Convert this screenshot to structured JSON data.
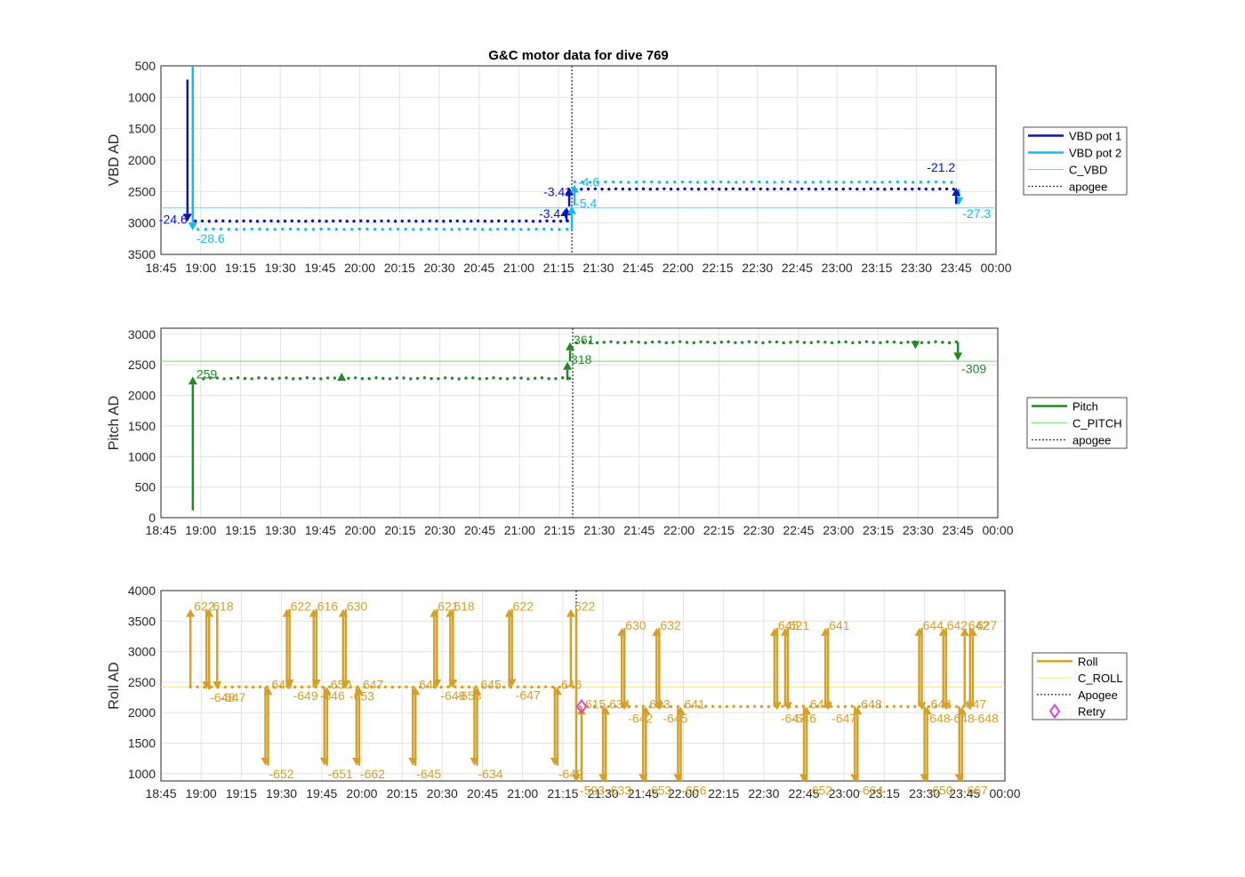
{
  "colors": {
    "vbd1": "#0c14b4",
    "vbd2": "#1ab8e8",
    "cvbd": "#5fd9e6",
    "pitch": "#24882a",
    "cpitch": "#66e066",
    "roll": "#d3a12b",
    "croll": "#f2ea6b",
    "retry": "#e040e0",
    "apogee": "#333333"
  },
  "chart_data": [
    {
      "type": "line",
      "title": "G&C motor data for dive 769",
      "ylabel": "VBD AD",
      "xlim": [
        "18:45",
        "00:00"
      ],
      "x_ticks": [
        "18:45",
        "19:00",
        "19:15",
        "19:30",
        "19:45",
        "20:00",
        "20:15",
        "20:30",
        "20:45",
        "21:00",
        "21:15",
        "21:30",
        "21:45",
        "22:00",
        "22:15",
        "22:30",
        "22:45",
        "23:00",
        "23:15",
        "23:30",
        "23:45",
        "00:00"
      ],
      "ylim": [
        500,
        3500
      ],
      "y_reversed": true,
      "y_ticks": [
        "500",
        "1000",
        "1500",
        "2000",
        "2500",
        "3000",
        "3500"
      ],
      "grid": true,
      "legend": [
        "VBD pot 1",
        "VBD pot 2",
        "C_VBD",
        "apogee"
      ],
      "legend_placement": "right",
      "apogee": "21:20",
      "reference_line": {
        "name": "C_VBD",
        "y": 2760
      },
      "series": [
        {
          "name": "VBD pot 1",
          "y_start": 2970,
          "y_end": 2460,
          "t_switch": "21:20"
        },
        {
          "name": "VBD pot 2",
          "y_start": 3100,
          "y_end": 2350,
          "t_switch": "21:20"
        }
      ],
      "moves": [
        {
          "x": "18:55",
          "from": 720,
          "to": 2980,
          "series": "VBD pot 1",
          "label": "-24.6"
        },
        {
          "x": "18:57",
          "from": 500,
          "to": 3120,
          "series": "VBD pot 2",
          "label": "-28.6"
        },
        {
          "x": "21:18",
          "from": 2980,
          "to": 2750,
          "series": "VBD pot 1",
          "label": "-3.44"
        },
        {
          "x": "21:19",
          "from": 2740,
          "to": 2430,
          "series": "VBD pot 1",
          "label": "-3.41"
        },
        {
          "x": "21:20",
          "from": 3100,
          "to": 2730,
          "series": "VBD pot 2",
          "label": "-5.4"
        },
        {
          "x": "21:21",
          "from": 2720,
          "to": 2390,
          "series": "VBD pot 2",
          "label": "-4.6"
        },
        {
          "x": "23:46",
          "from": 2460,
          "to": 2720,
          "series": "VBD pot 2",
          "label": "-27.3"
        },
        {
          "x": "23:45",
          "from": 2700,
          "to": 2440,
          "series": "VBD pot 1",
          "label": "-21.2"
        }
      ]
    },
    {
      "type": "line",
      "ylabel": "Pitch AD",
      "xlim": [
        "18:45",
        "00:00"
      ],
      "ylim": [
        0,
        3100
      ],
      "y_ticks": [
        "0",
        "500",
        "1000",
        "1500",
        "2000",
        "2500",
        "3000"
      ],
      "grid": true,
      "legend": [
        "Pitch",
        "C_PITCH",
        "apogee"
      ],
      "legend_placement": "right",
      "apogee": "21:20",
      "reference_line": {
        "name": "C_PITCH",
        "y": 2560
      },
      "series": [
        {
          "name": "Pitch",
          "y_start": 2280,
          "y_end": 2870,
          "t_switch": "21:20"
        }
      ],
      "moves": [
        {
          "x": "18:57",
          "from": 120,
          "to": 2310,
          "label": "259"
        },
        {
          "x": "21:18",
          "from": 2250,
          "to": 2550,
          "label": "318"
        },
        {
          "x": "21:19",
          "from": 2560,
          "to": 2870,
          "label": "361"
        },
        {
          "x": "23:45",
          "from": 2870,
          "to": 2570,
          "label": "-309"
        }
      ],
      "markers": [
        {
          "x": "19:53",
          "y": 2300,
          "shape": "up"
        },
        {
          "x": "23:29",
          "y": 2830,
          "shape": "down"
        }
      ]
    },
    {
      "type": "line",
      "ylabel": "Roll AD",
      "xlim": [
        "18:45",
        "00:00"
      ],
      "ylim": [
        880,
        4000
      ],
      "y_ticks": [
        "1000",
        "1500",
        "2000",
        "2500",
        "3000",
        "3500",
        "4000"
      ],
      "grid": true,
      "legend": [
        "Roll",
        "C_ROLL",
        "Apogee",
        "Retry"
      ],
      "legend_placement": "right",
      "apogee": "21:20",
      "reference_line": {
        "name": "C_ROLL",
        "y": 2420
      },
      "series": [
        {
          "name": "Roll",
          "y_start": 2420,
          "y_end": 2100,
          "t_switch": "21:20"
        }
      ],
      "retry": {
        "x": "21:22",
        "y": 2100
      },
      "moves": [
        {
          "x": "18:56",
          "from": 2400,
          "to": 3700,
          "label": "622"
        },
        {
          "x": "19:02",
          "from": 3700,
          "to": 2380,
          "label": "-648"
        },
        {
          "x": "19:03",
          "from": 2380,
          "to": 3700,
          "label": "618"
        },
        {
          "x": "19:06",
          "from": 3700,
          "to": 2380,
          "label": "-647"
        },
        {
          "x": "19:24",
          "from": 2420,
          "to": 1130,
          "label": "-652"
        },
        {
          "x": "19:25",
          "from": 1130,
          "to": 2420,
          "label": "649"
        },
        {
          "x": "19:32",
          "from": 2420,
          "to": 3700,
          "label": "622"
        },
        {
          "x": "19:33",
          "from": 3700,
          "to": 2410,
          "label": "-649"
        },
        {
          "x": "19:42",
          "from": 2410,
          "to": 3700,
          "label": "616"
        },
        {
          "x": "19:43",
          "from": 3700,
          "to": 2410,
          "label": "-646"
        },
        {
          "x": "19:46",
          "from": 2420,
          "to": 1130,
          "label": "-651"
        },
        {
          "x": "19:47",
          "from": 1130,
          "to": 2420,
          "label": "650"
        },
        {
          "x": "19:53",
          "from": 2420,
          "to": 3700,
          "label": "630"
        },
        {
          "x": "19:54",
          "from": 3700,
          "to": 2400,
          "label": "-653"
        },
        {
          "x": "19:58",
          "from": 2420,
          "to": 1130,
          "label": "-662"
        },
        {
          "x": "19:59",
          "from": 1130,
          "to": 2420,
          "label": "647"
        },
        {
          "x": "20:19",
          "from": 2420,
          "to": 1130,
          "label": "-645"
        },
        {
          "x": "20:20",
          "from": 1130,
          "to": 2420,
          "label": "647"
        },
        {
          "x": "20:27",
          "from": 2420,
          "to": 3700,
          "label": "621"
        },
        {
          "x": "20:28",
          "from": 3700,
          "to": 2410,
          "label": "-649"
        },
        {
          "x": "20:33",
          "from": 2420,
          "to": 3700,
          "label": "618"
        },
        {
          "x": "20:34",
          "from": 3700,
          "to": 2410,
          "label": "-653"
        },
        {
          "x": "20:42",
          "from": 2420,
          "to": 1130,
          "label": "-634"
        },
        {
          "x": "20:43",
          "from": 1130,
          "to": 2420,
          "label": "645"
        },
        {
          "x": "20:55",
          "from": 2420,
          "to": 3700,
          "label": "622"
        },
        {
          "x": "20:56",
          "from": 3700,
          "to": 2420,
          "label": "-647"
        },
        {
          "x": "21:12",
          "from": 2420,
          "to": 1130,
          "label": "-649"
        },
        {
          "x": "21:13",
          "from": 1130,
          "to": 2420,
          "label": "646"
        },
        {
          "x": "21:18",
          "from": 2420,
          "to": 3700,
          "label": "622"
        },
        {
          "x": "21:20",
          "from": 3700,
          "to": 860,
          "label": "-593"
        },
        {
          "x": "21:22",
          "from": 860,
          "to": 2100,
          "label": "615"
        },
        {
          "x": "21:30",
          "from": 2100,
          "to": 860,
          "label": "-633"
        },
        {
          "x": "21:31",
          "from": 860,
          "to": 2100,
          "label": "634"
        },
        {
          "x": "21:37",
          "from": 2100,
          "to": 3390,
          "label": "630"
        },
        {
          "x": "21:38",
          "from": 3390,
          "to": 2040,
          "label": "-642"
        },
        {
          "x": "21:45",
          "from": 2100,
          "to": 860,
          "label": "-653"
        },
        {
          "x": "21:46",
          "from": 860,
          "to": 2100,
          "label": "643"
        },
        {
          "x": "21:50",
          "from": 2100,
          "to": 3390,
          "label": "632"
        },
        {
          "x": "21:51",
          "from": 3390,
          "to": 2040,
          "label": "-645"
        },
        {
          "x": "21:58",
          "from": 2100,
          "to": 860,
          "label": "-656"
        },
        {
          "x": "21:59",
          "from": 860,
          "to": 2100,
          "label": "641"
        },
        {
          "x": "22:34",
          "from": 2100,
          "to": 3390,
          "label": "645"
        },
        {
          "x": "22:35",
          "from": 3390,
          "to": 2040,
          "label": "-647"
        },
        {
          "x": "22:38",
          "from": 2100,
          "to": 3390,
          "label": "621"
        },
        {
          "x": "22:39",
          "from": 3390,
          "to": 2040,
          "label": "-646"
        },
        {
          "x": "22:45",
          "from": 2100,
          "to": 860,
          "label": "-652"
        },
        {
          "x": "22:46",
          "from": 860,
          "to": 2100,
          "label": "648"
        },
        {
          "x": "22:53",
          "from": 2100,
          "to": 3390,
          "label": "641"
        },
        {
          "x": "22:54",
          "from": 3390,
          "to": 2040,
          "label": "-647"
        },
        {
          "x": "23:04",
          "from": 2100,
          "to": 860,
          "label": "-664"
        },
        {
          "x": "23:05",
          "from": 860,
          "to": 2100,
          "label": "648"
        },
        {
          "x": "23:28",
          "from": 2100,
          "to": 3390,
          "label": "644"
        },
        {
          "x": "23:29",
          "from": 3390,
          "to": 2040,
          "label": "-648"
        },
        {
          "x": "23:30",
          "from": 2100,
          "to": 860,
          "label": "-650"
        },
        {
          "x": "23:31",
          "from": 860,
          "to": 2100,
          "label": "646"
        },
        {
          "x": "23:37",
          "from": 2100,
          "to": 3390,
          "label": "642"
        },
        {
          "x": "23:38",
          "from": 3390,
          "to": 2040,
          "label": "-648"
        },
        {
          "x": "23:43",
          "from": 2100,
          "to": 860,
          "label": "-667"
        },
        {
          "x": "23:44",
          "from": 860,
          "to": 2100,
          "label": "647"
        },
        {
          "x": "23:45",
          "from": 2100,
          "to": 3390,
          "label": "642"
        },
        {
          "x": "23:47",
          "from": 3390,
          "to": 2040,
          "label": "-648"
        },
        {
          "x": "23:48",
          "from": 2100,
          "to": 3390,
          "label": "627"
        }
      ]
    }
  ]
}
